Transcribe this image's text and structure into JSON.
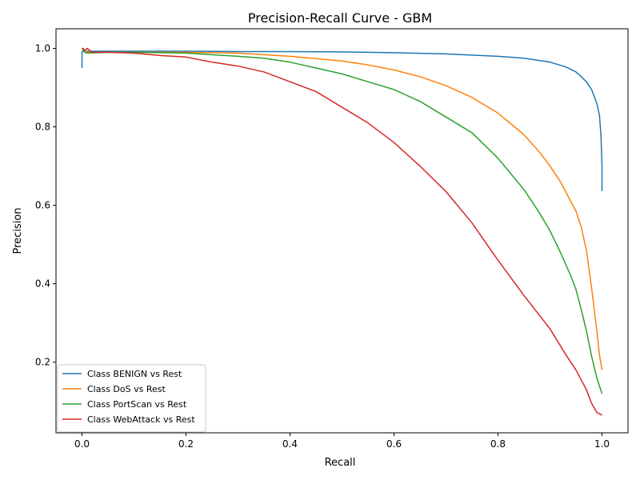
{
  "chart_data": {
    "type": "line",
    "title": "Precision-Recall Curve - GBM",
    "xlabel": "Recall",
    "ylabel": "Precision",
    "xlim": [
      -0.05,
      1.05
    ],
    "ylim": [
      0.02,
      1.05
    ],
    "xticks": [
      "0.0",
      "0.2",
      "0.4",
      "0.6",
      "0.8",
      "1.0"
    ],
    "xtick_values": [
      0.0,
      0.2,
      0.4,
      0.6,
      0.8,
      1.0
    ],
    "yticks": [
      "0.2",
      "0.4",
      "0.6",
      "0.8",
      "1.0"
    ],
    "ytick_values": [
      0.2,
      0.4,
      0.6,
      0.8,
      1.0
    ],
    "grid": false,
    "legend_position": "lower-left",
    "series": [
      {
        "name": "Class BENIGN vs Rest",
        "color": "#1f77b4",
        "x": [
          0.0,
          0.0,
          0.002,
          0.005,
          0.1,
          0.2,
          0.3,
          0.4,
          0.5,
          0.6,
          0.7,
          0.8,
          0.85,
          0.9,
          0.93,
          0.95,
          0.96,
          0.97,
          0.98,
          0.99,
          0.995,
          0.998,
          1.0,
          1.0
        ],
        "y": [
          0.95,
          0.99,
          0.993,
          0.993,
          0.993,
          0.993,
          0.992,
          0.992,
          0.991,
          0.989,
          0.986,
          0.98,
          0.975,
          0.965,
          0.953,
          0.94,
          0.928,
          0.915,
          0.895,
          0.86,
          0.83,
          0.78,
          0.7,
          0.636
        ]
      },
      {
        "name": "Class DoS vs Rest",
        "color": "#ff7f0e",
        "x": [
          0.0,
          0.005,
          0.01,
          0.05,
          0.1,
          0.2,
          0.3,
          0.4,
          0.5,
          0.55,
          0.6,
          0.65,
          0.7,
          0.75,
          0.8,
          0.85,
          0.88,
          0.9,
          0.92,
          0.94,
          0.95,
          0.96,
          0.97,
          0.98,
          0.99,
          0.995,
          1.0
        ],
        "y": [
          1.0,
          0.995,
          0.99,
          0.99,
          0.99,
          0.99,
          0.988,
          0.98,
          0.968,
          0.958,
          0.945,
          0.928,
          0.905,
          0.875,
          0.835,
          0.78,
          0.735,
          0.7,
          0.66,
          0.61,
          0.585,
          0.545,
          0.485,
          0.39,
          0.28,
          0.22,
          0.18
        ]
      },
      {
        "name": "Class PortScan vs Rest",
        "color": "#2ca02c",
        "x": [
          0.0,
          0.005,
          0.01,
          0.05,
          0.1,
          0.2,
          0.3,
          0.35,
          0.4,
          0.45,
          0.5,
          0.55,
          0.6,
          0.65,
          0.7,
          0.75,
          0.8,
          0.85,
          0.88,
          0.9,
          0.92,
          0.94,
          0.95,
          0.96,
          0.97,
          0.98,
          0.99,
          1.0
        ],
        "y": [
          1.0,
          0.99,
          0.988,
          0.99,
          0.99,
          0.988,
          0.98,
          0.975,
          0.965,
          0.95,
          0.935,
          0.915,
          0.895,
          0.865,
          0.825,
          0.785,
          0.72,
          0.64,
          0.58,
          0.535,
          0.48,
          0.42,
          0.385,
          0.335,
          0.28,
          0.215,
          0.16,
          0.12
        ]
      },
      {
        "name": "Class WebAttack vs Rest",
        "color": "#d62728",
        "x": [
          0.0,
          0.002,
          0.005,
          0.01,
          0.02,
          0.05,
          0.1,
          0.15,
          0.2,
          0.25,
          0.3,
          0.35,
          0.4,
          0.45,
          0.5,
          0.55,
          0.6,
          0.65,
          0.7,
          0.75,
          0.8,
          0.85,
          0.9,
          0.93,
          0.95,
          0.97,
          0.98,
          0.99,
          1.0
        ],
        "y": [
          1.0,
          1.0,
          0.995,
          1.0,
          0.99,
          0.99,
          0.988,
          0.982,
          0.978,
          0.965,
          0.955,
          0.94,
          0.915,
          0.89,
          0.85,
          0.81,
          0.76,
          0.7,
          0.635,
          0.555,
          0.46,
          0.37,
          0.285,
          0.22,
          0.18,
          0.13,
          0.095,
          0.072,
          0.065
        ]
      }
    ]
  }
}
